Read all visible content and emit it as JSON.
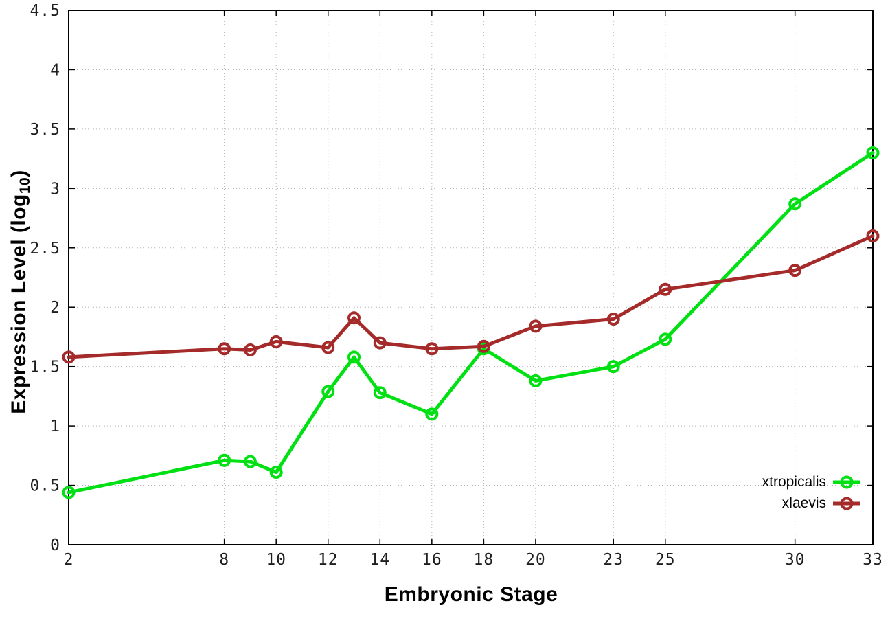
{
  "chart_data": {
    "type": "line",
    "title": "",
    "xlabel": "Embryonic Stage",
    "ylabel_prefix": "Expression Level (log",
    "ylabel_sub": "10",
    "ylabel_suffix": ")",
    "x": [
      2,
      8,
      9,
      10,
      12,
      13,
      14,
      16,
      18,
      20,
      23,
      25,
      30,
      33
    ],
    "series": [
      {
        "name": "xtropicalis",
        "color": "#00e013",
        "values": [
          0.44,
          0.71,
          0.7,
          0.61,
          1.29,
          1.58,
          1.28,
          1.1,
          1.65,
          1.38,
          1.5,
          1.73,
          2.87,
          3.3
        ]
      },
      {
        "name": "xlaevis",
        "color": "#a52a2a",
        "values": [
          1.58,
          1.65,
          1.64,
          1.71,
          1.66,
          1.91,
          1.7,
          1.65,
          1.67,
          1.84,
          1.9,
          2.15,
          2.31,
          2.6
        ]
      }
    ],
    "xticks": [
      2,
      8,
      10,
      12,
      14,
      16,
      18,
      20,
      23,
      25,
      30,
      33
    ],
    "yticks": [
      0,
      0.5,
      1,
      1.5,
      2,
      2.5,
      3,
      3.5,
      4,
      4.5
    ],
    "xlim": [
      2,
      33
    ],
    "ylim": [
      0,
      4.5
    ],
    "grid": true,
    "legend_position": "bottom-right"
  }
}
